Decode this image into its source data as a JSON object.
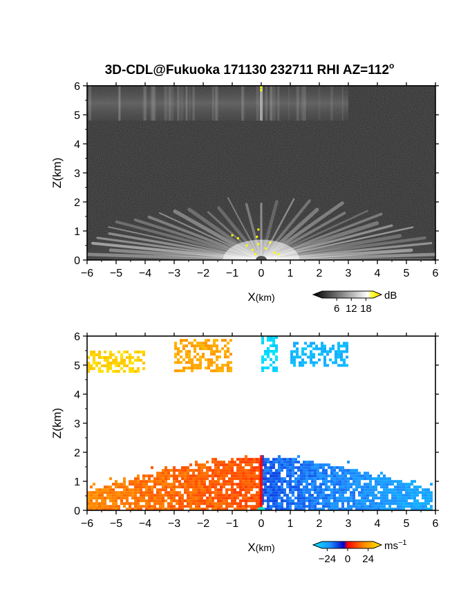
{
  "title": "3D-CDL@Fukuoka 171130 232711 RHI AZ=112",
  "title_sup": "o",
  "chart_data": [
    {
      "type": "heatmap",
      "panel": "backscatter",
      "xlabel_main": "X",
      "xlabel_unit": "(km)",
      "ylabel": "Z(km)",
      "xlim": [
        -6,
        6
      ],
      "ylim": [
        0,
        6
      ],
      "x_ticks": [
        "-6",
        "-5",
        "-4",
        "-3",
        "-2",
        "-1",
        "0",
        "1",
        "2",
        "3",
        "4",
        "5",
        "6"
      ],
      "y_ticks": [
        "0",
        "1",
        "2",
        "3",
        "4",
        "5",
        "6"
      ],
      "colorbar": {
        "unit": "dB",
        "ticks": [
          "6",
          "12",
          "18"
        ],
        "range": [
          0,
          21
        ]
      },
      "features": {
        "near_ground_fan": {
          "x_range": [
            -6,
            6
          ],
          "z_range": [
            0,
            2
          ]
        },
        "upper_layer": {
          "x_range": [
            -6,
            3
          ],
          "z_range": [
            4.8,
            6
          ]
        }
      },
      "grid": false
    },
    {
      "type": "heatmap",
      "panel": "doppler_velocity",
      "xlabel_main": "X",
      "xlabel_unit": "(km)",
      "ylabel": "Z(km)",
      "xlim": [
        -6,
        6
      ],
      "ylim": [
        0,
        6
      ],
      "x_ticks": [
        "-6",
        "-5",
        "-4",
        "-3",
        "-2",
        "-1",
        "0",
        "1",
        "2",
        "3",
        "4",
        "5",
        "6"
      ],
      "y_ticks": [
        "0",
        "1",
        "2",
        "3",
        "4",
        "5",
        "6"
      ],
      "colorbar": {
        "unit": "ms",
        "unit_sup": "−1",
        "ticks": [
          "−24",
          "0",
          "24"
        ],
        "range": [
          -30,
          30
        ]
      },
      "regions": [
        {
          "x_range": [
            -6,
            0
          ],
          "z_range": [
            0,
            1.9
          ],
          "velocity": 12
        },
        {
          "x_range": [
            0,
            5.9
          ],
          "z_range": [
            0,
            1.9
          ],
          "velocity": -16
        },
        {
          "x_range": [
            -6,
            -4
          ],
          "z_range": [
            4.8,
            5.5
          ],
          "velocity": 26
        },
        {
          "x_range": [
            -3,
            -1
          ],
          "z_range": [
            4.8,
            5.9
          ],
          "velocity": 19
        },
        {
          "x_range": [
            0,
            0.5
          ],
          "z_range": [
            4.8,
            6
          ],
          "velocity": -28
        },
        {
          "x_range": [
            1,
            3
          ],
          "z_range": [
            5,
            5.8
          ],
          "velocity": -22
        }
      ],
      "grid": false
    }
  ],
  "colors": {
    "fan_core": "#ffffff",
    "background_noise": "#2b2b2b",
    "highlight": "#ffff00",
    "vel_negative_far": "#1e90ff",
    "vel_negative_near": "#0000ff",
    "vel_zero": "#ff0000",
    "vel_positive_mid": "#ff8c00",
    "vel_positive_far": "#ffe000"
  }
}
